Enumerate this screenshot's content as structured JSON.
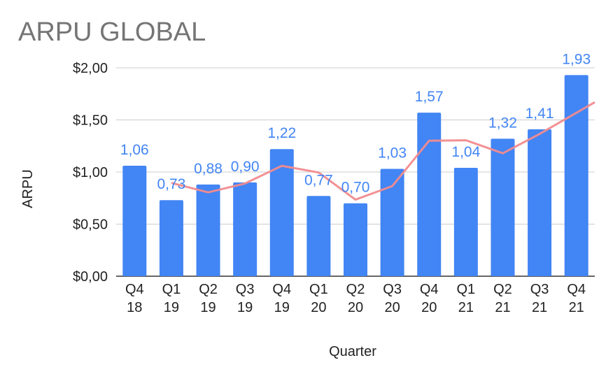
{
  "colors": {
    "bar": "#4285f4",
    "label": "#4285f4",
    "trend": "#f28b8e",
    "grid": "#cccccc",
    "axis": "#333333",
    "title": "#757575"
  },
  "chart_data": {
    "type": "bar",
    "title": "ARPU GLOBAL",
    "xlabel": "Quarter",
    "ylabel": "ARPU",
    "ylim": [
      0,
      2
    ],
    "yticks": [
      {
        "value": 0,
        "label": "$0,00"
      },
      {
        "value": 0.5,
        "label": "$0,50"
      },
      {
        "value": 1,
        "label": "$1,00"
      },
      {
        "value": 1.5,
        "label": "$1,50"
      },
      {
        "value": 2,
        "label": "$2,00"
      }
    ],
    "grid": true,
    "legend": "none",
    "categories": [
      [
        "Q4",
        "18"
      ],
      [
        "Q1",
        "19"
      ],
      [
        "Q2",
        "19"
      ],
      [
        "Q3",
        "19"
      ],
      [
        "Q4",
        "19"
      ],
      [
        "Q1",
        "20"
      ],
      [
        "Q2",
        "20"
      ],
      [
        "Q3",
        "20"
      ],
      [
        "Q4",
        "20"
      ],
      [
        "Q1",
        "21"
      ],
      [
        "Q2",
        "21"
      ],
      [
        "Q3",
        "21"
      ],
      [
        "Q4",
        "21"
      ]
    ],
    "values": [
      1.06,
      0.73,
      0.88,
      0.9,
      1.22,
      0.77,
      0.7,
      1.03,
      1.57,
      1.04,
      1.32,
      1.41,
      1.93
    ],
    "data_labels": [
      "1,06",
      "0,73",
      "0,88",
      "0,90",
      "1,22",
      "0,77",
      "0,70",
      "1,03",
      "1,57",
      "1,04",
      "1,32",
      "1,41",
      "1,93"
    ],
    "trendline": {
      "type": "moving-average",
      "period": 2,
      "values": [
        0.895,
        0.805,
        0.89,
        1.06,
        0.995,
        0.735,
        0.865,
        1.3,
        1.305,
        1.18,
        1.365,
        1.67
      ]
    }
  }
}
